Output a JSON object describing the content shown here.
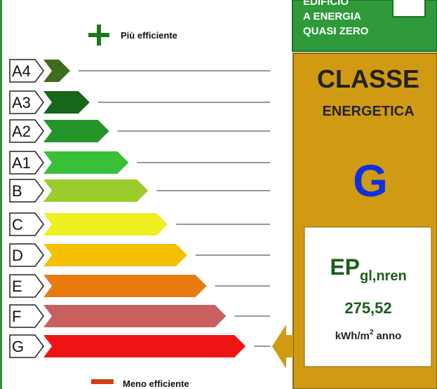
{
  "top_label": "Più efficiente",
  "bottom_label": "Meno efficiente",
  "classes": [
    "A4",
    "A3",
    "A2",
    "A1",
    "B",
    "C",
    "D",
    "E",
    "F",
    "G"
  ],
  "nzeb": [
    "EDIFICIO",
    "A ENERGIA",
    "QUASI ZERO"
  ],
  "panel": {
    "title_1": "CLASSE",
    "title_2": "ENERGETICA",
    "class": "G",
    "ep": "EP",
    "ep_sub": "gl,nren",
    "value": "275,52",
    "unit": "kWh/m",
    "unit_sup": "2",
    "unit_tail": "anno"
  }
}
